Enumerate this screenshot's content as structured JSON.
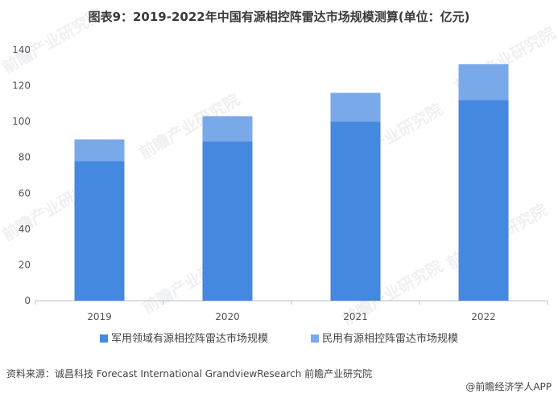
{
  "title": "图表9：2019-2022年中国有源相控阵雷达市场规模测算(单位：亿元)",
  "source": "资料来源：诚昌科技 Forecast International GrandviewResearch 前瞻产业研究院",
  "brand": "@前瞻经济学人APP",
  "watermark": "前瞻产业研究院",
  "colors": {
    "military": "#4488e0",
    "civil": "#7aa9ea",
    "axis": "#bfbfbf",
    "tick_text": "#555555"
  },
  "chart_data": {
    "type": "bar",
    "stacked": true,
    "categories": [
      "2019",
      "2020",
      "2021",
      "2022"
    ],
    "series": [
      {
        "name": "军用领域有源相控阵雷达市场规模",
        "values": [
          78,
          89,
          100,
          112
        ]
      },
      {
        "name": "民用有源相控阵雷达市场规模",
        "values": [
          12,
          14,
          16,
          20
        ]
      }
    ],
    "ylim": [
      0,
      140
    ],
    "yticks": [
      0,
      20,
      40,
      60,
      80,
      100,
      120,
      140
    ],
    "grid": false,
    "legend": "bottom"
  }
}
